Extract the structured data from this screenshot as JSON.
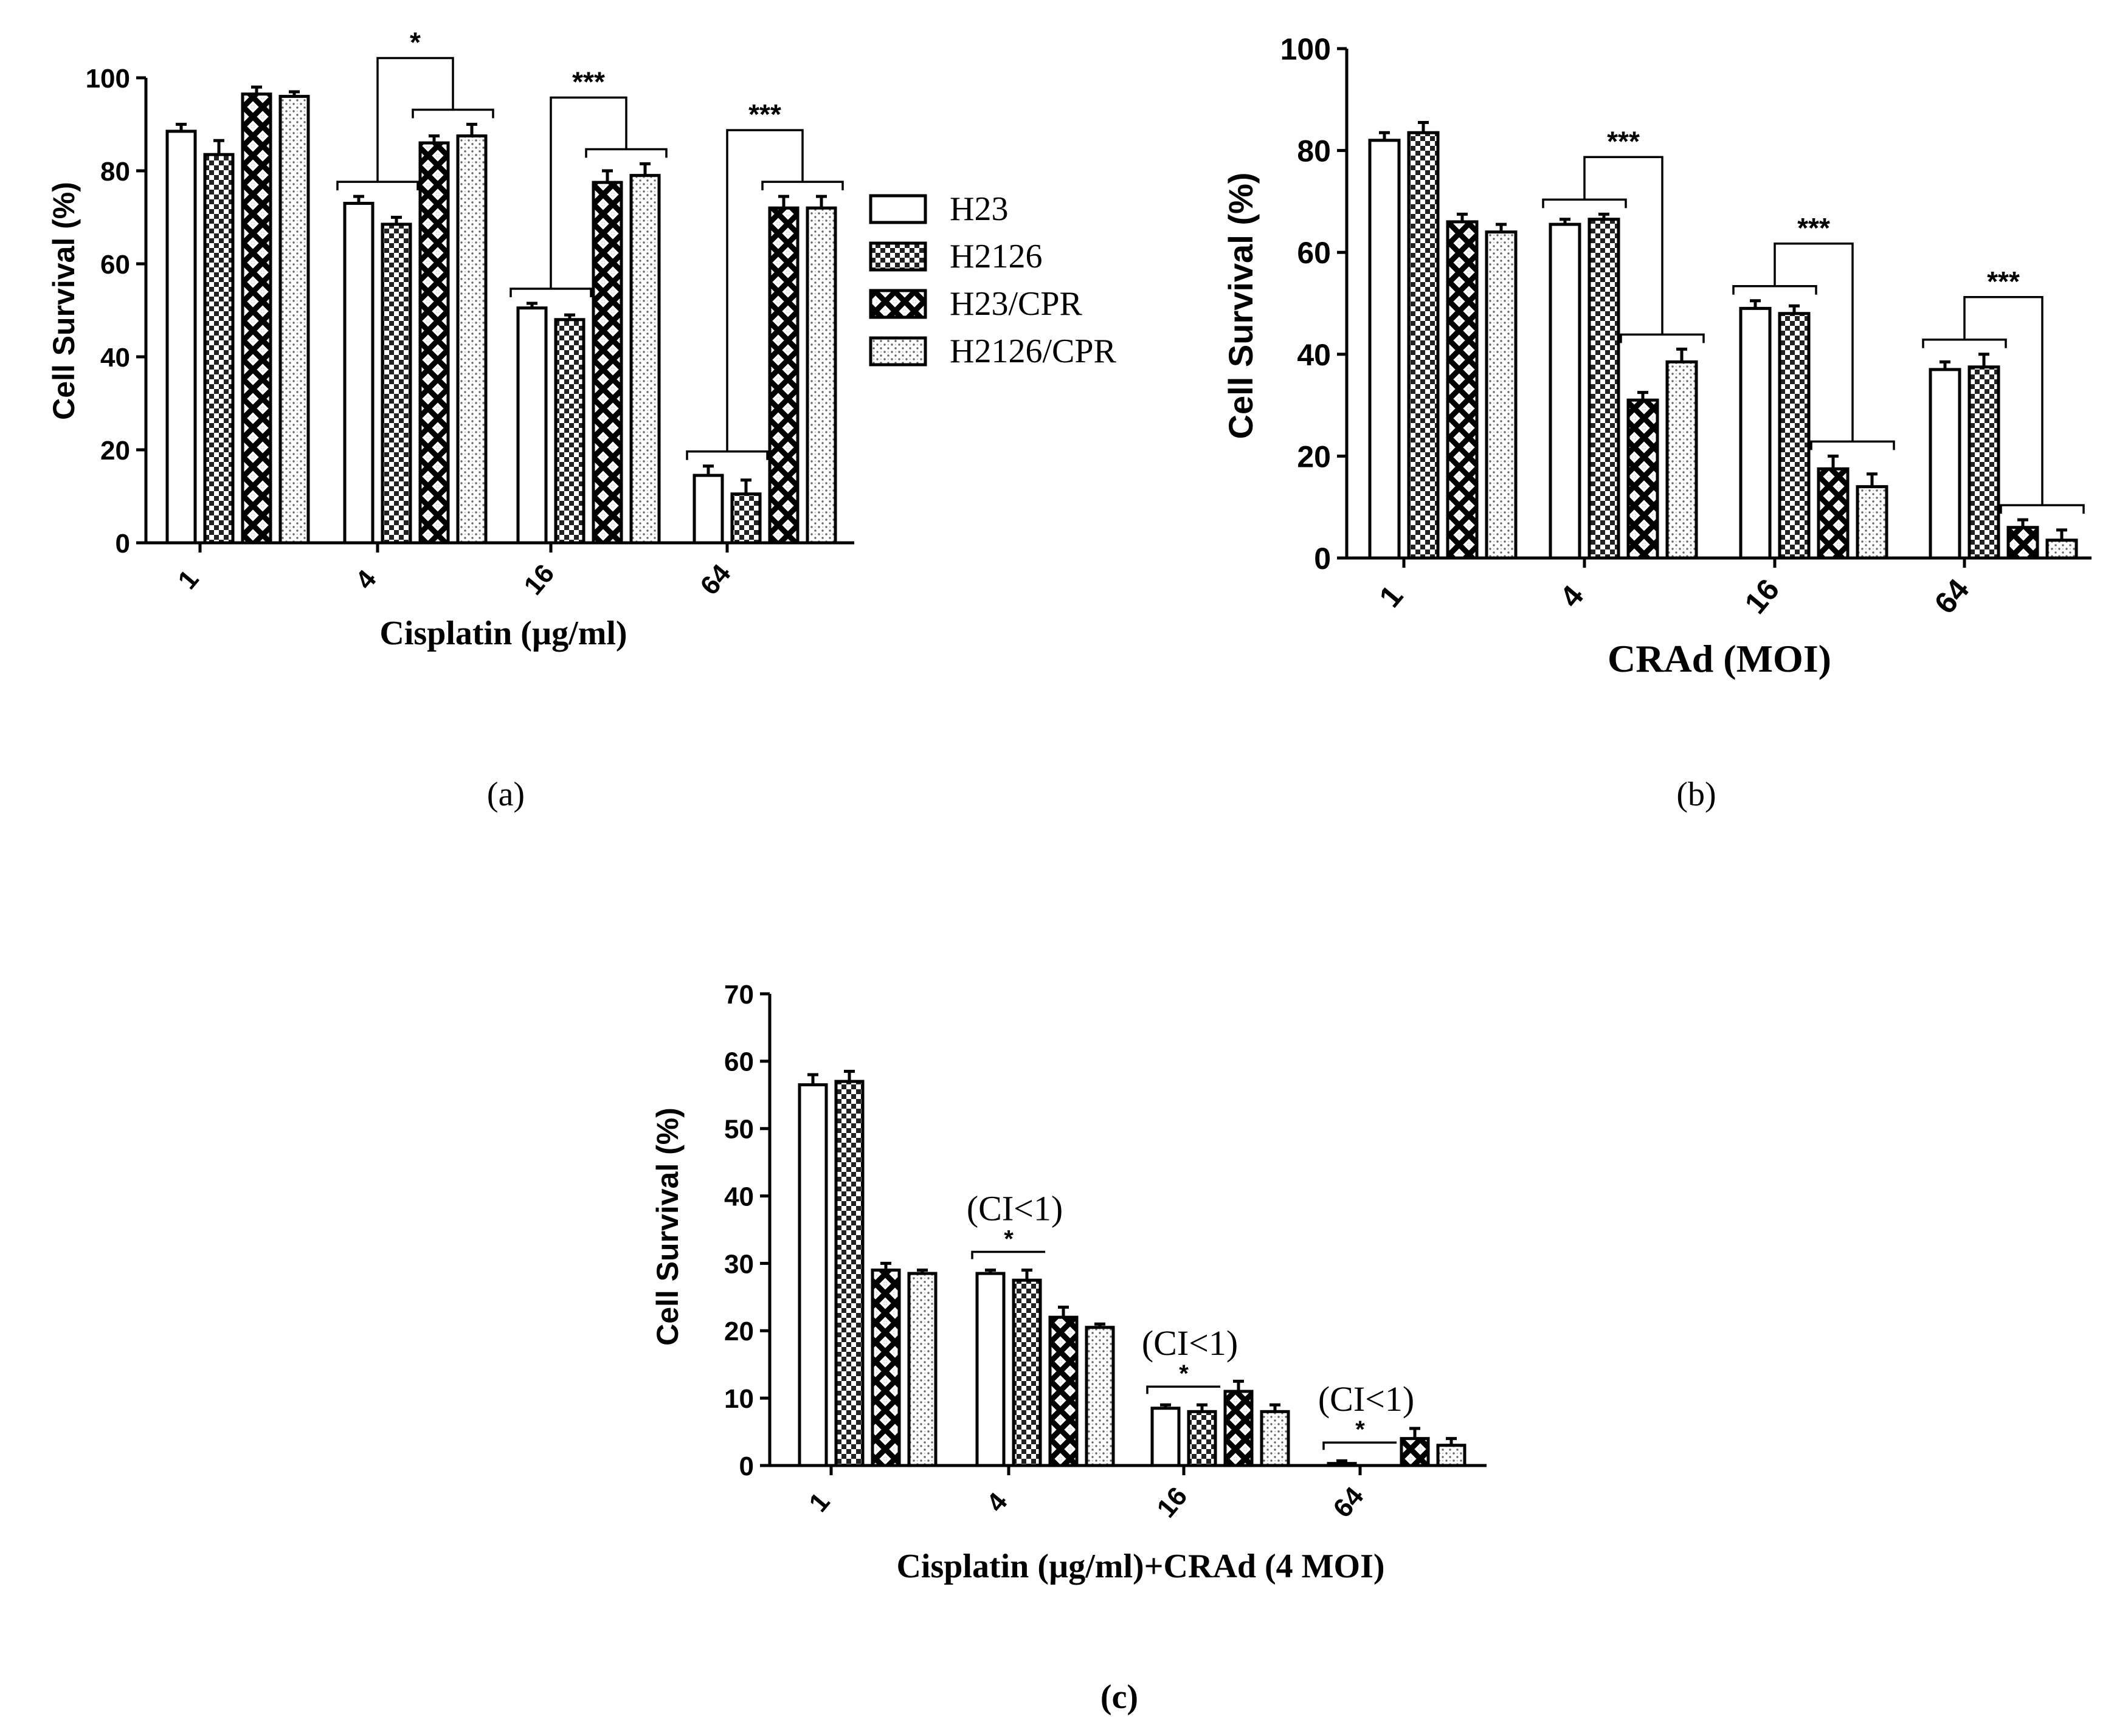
{
  "legend": {
    "entries": [
      "H23",
      "H2126",
      "H23/CPR",
      "H2126/CPR"
    ]
  },
  "patterns": [
    "open",
    "check",
    "diamond-lattice",
    "dots"
  ],
  "chart_data": [
    {
      "type": "bar",
      "panel_label": "(a)",
      "xlabel": "Cisplatin (µg/ml)",
      "ylabel": "Cell Survival (%)",
      "ylim": [
        0,
        100
      ],
      "yticks": [
        0,
        20,
        40,
        60,
        80,
        100
      ],
      "categories": [
        "1",
        "4",
        "16",
        "64"
      ],
      "series": [
        {
          "name": "H23",
          "values": [
            88.5,
            73,
            50.5,
            14.5
          ],
          "errors": [
            1.5,
            1.5,
            1,
            2
          ]
        },
        {
          "name": "H2126",
          "values": [
            83.5,
            68.5,
            48,
            10.5
          ],
          "errors": [
            3,
            1.5,
            1,
            3
          ]
        },
        {
          "name": "H23/CPR",
          "values": [
            96.5,
            86,
            77.5,
            72
          ],
          "errors": [
            1.5,
            1.5,
            2.5,
            2.5
          ]
        },
        {
          "name": "H2126/CPR",
          "values": [
            96,
            87.5,
            79,
            72
          ],
          "errors": [
            1,
            2.5,
            2.5,
            2.5
          ]
        }
      ],
      "significance": [
        "*",
        "***",
        "***"
      ]
    },
    {
      "type": "bar",
      "panel_label": "(b)",
      "xlabel": "CRAd (MOI)",
      "ylabel": "Cell Survival (%)",
      "ylim": [
        0,
        100
      ],
      "yticks": [
        0,
        20,
        40,
        60,
        80,
        100
      ],
      "categories": [
        "1",
        "4",
        "16",
        "64"
      ],
      "series": [
        {
          "name": "H23",
          "values": [
            82,
            65.5,
            49,
            37
          ],
          "errors": [
            1.5,
            1,
            1.5,
            1.5
          ]
        },
        {
          "name": "H2126",
          "values": [
            83.5,
            66.5,
            48,
            37.5
          ],
          "errors": [
            2,
            1,
            1.5,
            2.5
          ]
        },
        {
          "name": "H23/CPR",
          "values": [
            66,
            31,
            17.5,
            6
          ],
          "errors": [
            1.5,
            1.5,
            2.5,
            1.5
          ]
        },
        {
          "name": "H2126/CPR",
          "values": [
            64,
            38.5,
            14,
            3.5
          ],
          "errors": [
            1.5,
            2.5,
            2.5,
            2
          ]
        }
      ],
      "significance": [
        "***",
        "***",
        "***"
      ]
    },
    {
      "type": "bar",
      "panel_label": "(c)",
      "xlabel": "Cisplatin (µg/ml)+CRAd (4 MOI)",
      "ylabel": "Cell Survival (%)",
      "ylim": [
        0,
        70
      ],
      "yticks": [
        0,
        10,
        20,
        30,
        40,
        50,
        60,
        70
      ],
      "categories": [
        "1",
        "4",
        "16",
        "64"
      ],
      "series": [
        {
          "name": "H23",
          "values": [
            56.5,
            28.5,
            8.5,
            0.3
          ],
          "errors": [
            1.5,
            0.5,
            0.5,
            0.4
          ]
        },
        {
          "name": "H2126",
          "values": [
            57,
            27.5,
            8,
            0
          ],
          "errors": [
            1.5,
            1.5,
            1,
            0
          ]
        },
        {
          "name": "H23/CPR",
          "values": [
            29,
            22,
            11,
            4
          ],
          "errors": [
            1,
            1.5,
            1.5,
            1.5
          ]
        },
        {
          "name": "H2126/CPR",
          "values": [
            28.5,
            20.5,
            8,
            3
          ],
          "errors": [
            0.5,
            0.5,
            1,
            1
          ]
        }
      ],
      "significance": [
        "*",
        "*",
        "*"
      ],
      "annotations": [
        "(CI<1)",
        "(CI<1)",
        "(CI<1)"
      ]
    }
  ]
}
